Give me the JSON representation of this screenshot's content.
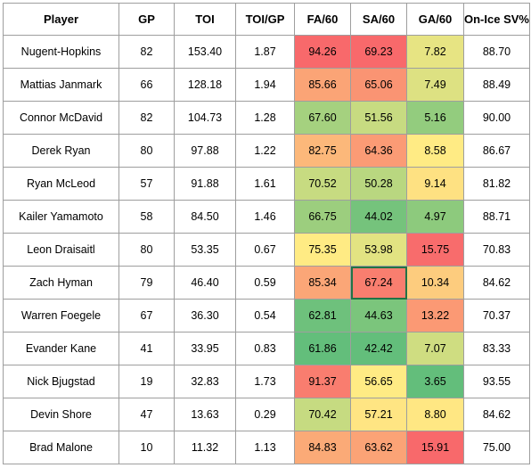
{
  "chart_data": {
    "type": "table",
    "columns": [
      "Player",
      "GP",
      "TOI",
      "TOI/GP",
      "FA/60",
      "SA/60",
      "GA/60",
      "On-Ice SV%"
    ],
    "rows": [
      [
        "Nugent-Hopkins",
        "82",
        "153.40",
        "1.87",
        "94.26",
        "69.23",
        "7.82",
        "88.70"
      ],
      [
        "Mattias Janmark",
        "66",
        "128.18",
        "1.94",
        "85.66",
        "65.06",
        "7.49",
        "88.49"
      ],
      [
        "Connor McDavid",
        "82",
        "104.73",
        "1.28",
        "67.60",
        "51.56",
        "5.16",
        "90.00"
      ],
      [
        "Derek Ryan",
        "80",
        "97.88",
        "1.22",
        "82.75",
        "64.36",
        "8.58",
        "86.67"
      ],
      [
        "Ryan McLeod",
        "57",
        "91.88",
        "1.61",
        "70.52",
        "50.28",
        "9.14",
        "81.82"
      ],
      [
        "Kailer Yamamoto",
        "58",
        "84.50",
        "1.46",
        "66.75",
        "44.02",
        "4.97",
        "88.71"
      ],
      [
        "Leon Draisaitl",
        "80",
        "53.35",
        "0.67",
        "75.35",
        "53.98",
        "15.75",
        "70.83"
      ],
      [
        "Zach Hyman",
        "79",
        "46.40",
        "0.59",
        "85.34",
        "67.24",
        "10.34",
        "84.62"
      ],
      [
        "Warren Foegele",
        "67",
        "36.30",
        "0.54",
        "62.81",
        "44.63",
        "13.22",
        "70.37"
      ],
      [
        "Evander Kane",
        "41",
        "33.95",
        "0.83",
        "61.86",
        "42.42",
        "7.07",
        "83.33"
      ],
      [
        "Nick Bjugstad",
        "19",
        "32.83",
        "1.73",
        "91.37",
        "56.65",
        "3.65",
        "93.55"
      ],
      [
        "Devin Shore",
        "47",
        "13.63",
        "0.29",
        "70.42",
        "57.21",
        "8.80",
        "84.62"
      ],
      [
        "Brad Malone",
        "10",
        "11.32",
        "1.13",
        "84.83",
        "63.62",
        "15.91",
        "75.00"
      ]
    ],
    "color_scale": {
      "applies_to": [
        "FA/60",
        "SA/60",
        "GA/60"
      ],
      "low": "#63be7b",
      "mid": "#ffeb84",
      "high": "#f8696b",
      "direction": "low values green, high values red"
    }
  },
  "selected_cell": {
    "row": 7,
    "column": "SA/60"
  },
  "colors": {
    "grid_border": "#9e9e9e",
    "selection_outline": "#217346"
  }
}
